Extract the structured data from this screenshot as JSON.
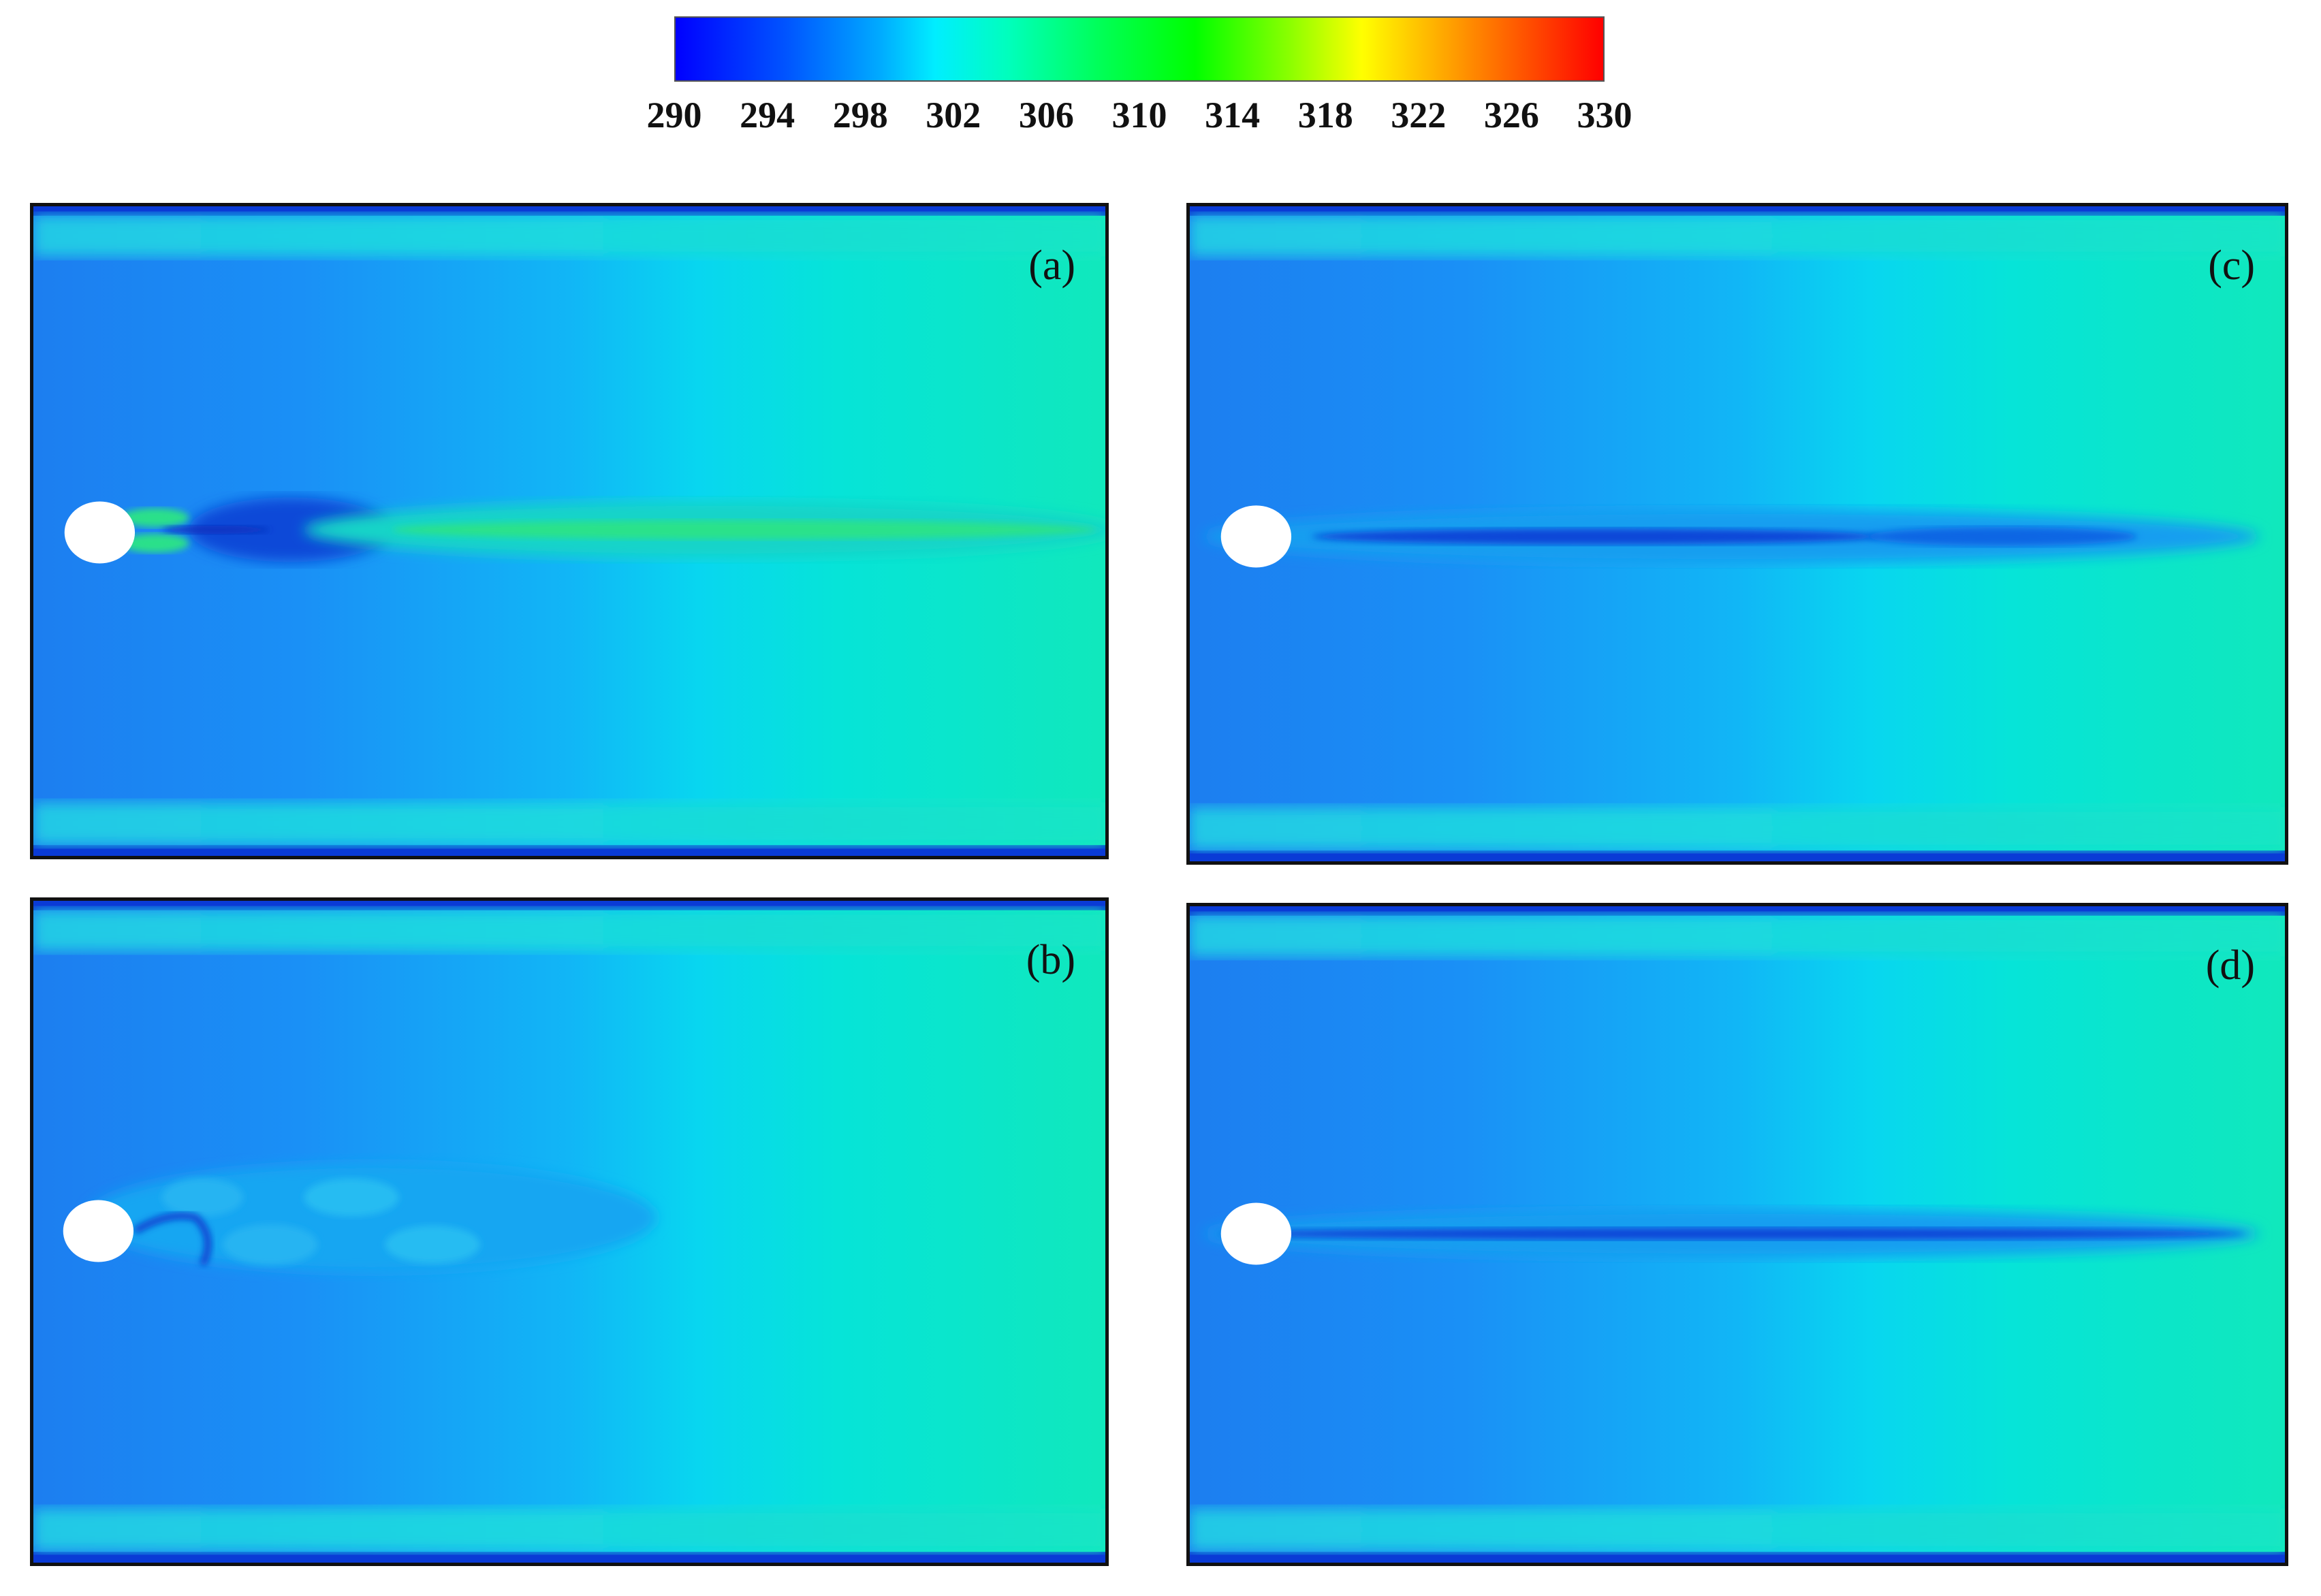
{
  "colorbar": {
    "ticks": [
      "290",
      "294",
      "298",
      "302",
      "306",
      "310",
      "314",
      "318",
      "322",
      "326",
      "330"
    ],
    "min": 290,
    "max": 330,
    "colors": [
      "#0000ff",
      "#00aaff",
      "#00ffff",
      "#00ff99",
      "#00ff00",
      "#aaff00",
      "#ffff00",
      "#ffaa00",
      "#ff5500",
      "#ff0000"
    ]
  },
  "panels": [
    {
      "id": "a",
      "label": "(a)"
    },
    {
      "id": "b",
      "label": "(b)"
    },
    {
      "id": "c",
      "label": "(c)"
    },
    {
      "id": "d",
      "label": "(d)"
    }
  ]
}
